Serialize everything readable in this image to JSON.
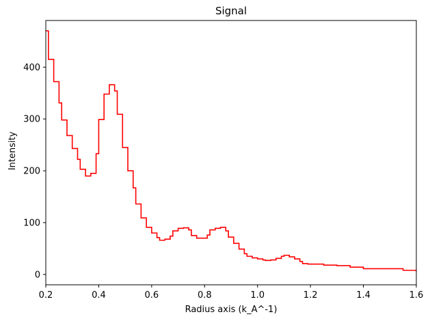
{
  "chart_data": {
    "type": "line",
    "drawstyle": "steps",
    "title": "Signal",
    "xlabel": "Radius axis (k_A^-1)",
    "ylabel": "Intensity",
    "xlim": [
      0.2,
      1.6
    ],
    "ylim": [
      -20,
      490
    ],
    "xticks": [
      0.2,
      0.4,
      0.6,
      0.8,
      1.0,
      1.2,
      1.4,
      1.6
    ],
    "xtick_labels": [
      "0.2",
      "0.4",
      "0.6",
      "0.8",
      "1.0",
      "1.2",
      "1.4",
      "1.6"
    ],
    "yticks": [
      0,
      100,
      200,
      300,
      400
    ],
    "ytick_labels": [
      "0",
      "100",
      "200",
      "300",
      "400"
    ],
    "grid": false,
    "legend": "none",
    "color": "#ff0000",
    "series": [
      {
        "x": [
          0.2,
          0.21,
          0.23,
          0.25,
          0.26,
          0.28,
          0.3,
          0.32,
          0.33,
          0.35,
          0.37,
          0.39,
          0.4,
          0.42,
          0.44,
          0.46,
          0.47,
          0.49,
          0.51,
          0.53,
          0.54,
          0.56,
          0.58,
          0.6,
          0.62,
          0.63,
          0.65,
          0.67,
          0.68,
          0.7,
          0.72,
          0.74,
          0.75,
          0.77,
          0.79,
          0.81,
          0.82,
          0.84,
          0.86,
          0.88,
          0.89,
          0.91,
          0.93,
          0.95,
          0.96,
          0.98,
          1.0,
          1.02,
          1.03,
          1.05,
          1.07,
          1.09,
          1.1,
          1.12,
          1.14,
          1.16,
          1.17,
          1.19,
          1.21,
          1.25,
          1.3,
          1.35,
          1.4,
          1.45,
          1.5,
          1.55,
          1.6
        ],
        "y": [
          470,
          415,
          372,
          331,
          298,
          268,
          243,
          222,
          203,
          190,
          195,
          233,
          299,
          348,
          366,
          354,
          309,
          245,
          200,
          167,
          136,
          109,
          91,
          80,
          71,
          66,
          68,
          74,
          84,
          89,
          90,
          86,
          75,
          70,
          70,
          76,
          86,
          89,
          91,
          84,
          72,
          60,
          49,
          40,
          35,
          32,
          30,
          28,
          27,
          28,
          31,
          35,
          37,
          34,
          30,
          25,
          21,
          20,
          20,
          18,
          17,
          14,
          11,
          11,
          11,
          8,
          5
        ]
      }
    ]
  }
}
